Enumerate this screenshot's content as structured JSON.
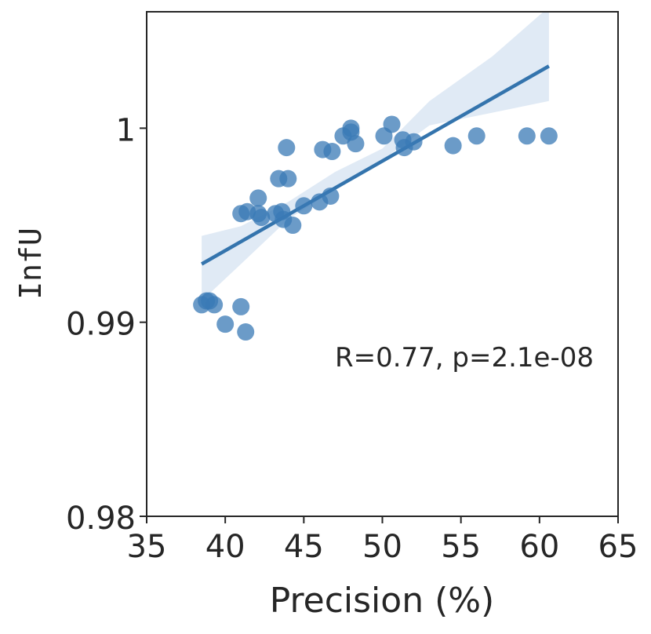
{
  "chart_data": {
    "type": "scatter",
    "xlabel": "Precision (%)",
    "ylabel": "InfU",
    "xlim": [
      35,
      65
    ],
    "ylim": [
      0.98,
      1.006
    ],
    "xticks": [
      35,
      40,
      45,
      50,
      55,
      60,
      65
    ],
    "xtick_labels": [
      "35",
      "40",
      "45",
      "50",
      "55",
      "60",
      "65"
    ],
    "yticks": [
      0.98,
      0.99,
      1.0
    ],
    "ytick_labels": [
      "0.98",
      "0.99",
      "1"
    ],
    "annotation": "R=0.77, p=2.1e-08",
    "colors": {
      "points": "#3a7ab5",
      "line": "#3474ad",
      "band": "#c6d9ec",
      "axis": "#262626"
    },
    "series": [
      {
        "name": "points",
        "points": [
          {
            "x": 38.5,
            "y": 0.9909
          },
          {
            "x": 38.8,
            "y": 0.9911
          },
          {
            "x": 39.0,
            "y": 0.9911
          },
          {
            "x": 39.3,
            "y": 0.9909
          },
          {
            "x": 40.0,
            "y": 0.9899
          },
          {
            "x": 41.0,
            "y": 0.9908
          },
          {
            "x": 41.3,
            "y": 0.9895
          },
          {
            "x": 41.0,
            "y": 0.9956
          },
          {
            "x": 41.4,
            "y": 0.9957
          },
          {
            "x": 42.1,
            "y": 0.9964
          },
          {
            "x": 42.1,
            "y": 0.9956
          },
          {
            "x": 42.3,
            "y": 0.9954
          },
          {
            "x": 43.2,
            "y": 0.9956
          },
          {
            "x": 43.6,
            "y": 0.9957
          },
          {
            "x": 43.7,
            "y": 0.9953
          },
          {
            "x": 44.3,
            "y": 0.995
          },
          {
            "x": 43.4,
            "y": 0.9974
          },
          {
            "x": 44.0,
            "y": 0.9974
          },
          {
            "x": 43.9,
            "y": 0.999
          },
          {
            "x": 45.0,
            "y": 0.996
          },
          {
            "x": 46.0,
            "y": 0.9962
          },
          {
            "x": 46.7,
            "y": 0.9965
          },
          {
            "x": 46.2,
            "y": 0.9989
          },
          {
            "x": 46.8,
            "y": 0.9988
          },
          {
            "x": 47.5,
            "y": 0.9996
          },
          {
            "x": 48.0,
            "y": 0.9998
          },
          {
            "x": 48.0,
            "y": 1.0
          },
          {
            "x": 48.3,
            "y": 0.9992
          },
          {
            "x": 50.1,
            "y": 0.9996
          },
          {
            "x": 50.6,
            "y": 1.0002
          },
          {
            "x": 51.3,
            "y": 0.9994
          },
          {
            "x": 51.4,
            "y": 0.999
          },
          {
            "x": 52.0,
            "y": 0.9993
          },
          {
            "x": 54.5,
            "y": 0.9991
          },
          {
            "x": 56.0,
            "y": 0.9996
          },
          {
            "x": 59.2,
            "y": 0.9996
          },
          {
            "x": 60.6,
            "y": 0.9996
          }
        ]
      },
      {
        "name": "regression",
        "line": [
          {
            "x": 38.5,
            "y": 0.993
          },
          {
            "x": 60.6,
            "y": 1.0032
          }
        ],
        "ci_upper": [
          {
            "x": 38.5,
            "y": 0.99445
          },
          {
            "x": 41.0,
            "y": 0.99495
          },
          {
            "x": 44.0,
            "y": 0.9962
          },
          {
            "x": 47.0,
            "y": 0.99775
          },
          {
            "x": 50.0,
            "y": 0.99895
          },
          {
            "x": 53.0,
            "y": 1.0014
          },
          {
            "x": 57.0,
            "y": 1.0037
          },
          {
            "x": 60.6,
            "y": 1.00625
          }
        ],
        "ci_lower": [
          {
            "x": 60.6,
            "y": 1.0014
          },
          {
            "x": 57.0,
            "y": 1.0008
          },
          {
            "x": 53.0,
            "y": 1.00015
          },
          {
            "x": 50.0,
            "y": 0.99835
          },
          {
            "x": 47.0,
            "y": 0.99685
          },
          {
            "x": 44.0,
            "y": 0.9953
          },
          {
            "x": 41.0,
            "y": 0.993
          },
          {
            "x": 38.5,
            "y": 0.9911
          }
        ]
      }
    ]
  }
}
